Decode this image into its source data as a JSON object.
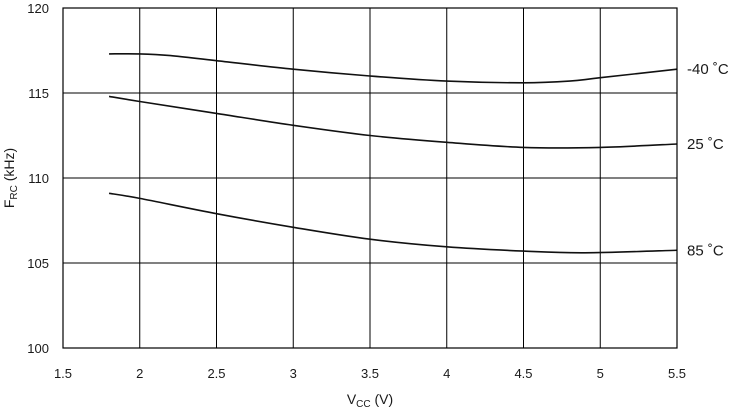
{
  "chart_data": {
    "type": "line",
    "title": "",
    "xlabel": {
      "main": "V",
      "sub": "CC",
      "unit": " (V)"
    },
    "ylabel": {
      "main": "F",
      "sub": "RC",
      "unit": " (kHz)"
    },
    "xlim": [
      1.5,
      5.5
    ],
    "ylim": [
      100,
      120
    ],
    "xticks": [
      1.5,
      2,
      2.5,
      3,
      3.5,
      4,
      4.5,
      5,
      5.5
    ],
    "xtick_labels": [
      "1.5",
      "2",
      "2.5",
      "3",
      "3.5",
      "4",
      "4.5",
      "5",
      "5.5"
    ],
    "yticks": [
      100,
      105,
      110,
      115,
      120
    ],
    "ytick_labels": [
      "100",
      "105",
      "110",
      "115",
      "120"
    ],
    "grid": true,
    "legend": "inline labels at right of each curve",
    "series": [
      {
        "name": "-40 ˚C",
        "x": [
          1.8,
          2.0,
          2.2,
          2.5,
          3.0,
          3.5,
          4.0,
          4.5,
          4.8,
          5.0,
          5.5
        ],
        "y": [
          117.3,
          117.3,
          117.2,
          116.9,
          116.4,
          116.0,
          115.7,
          115.6,
          115.7,
          115.9,
          116.4
        ]
      },
      {
        "name": "25 ˚C",
        "x": [
          1.8,
          2.0,
          2.5,
          3.0,
          3.5,
          4.0,
          4.5,
          5.0,
          5.5
        ],
        "y": [
          114.8,
          114.5,
          113.8,
          113.1,
          112.5,
          112.1,
          111.8,
          111.8,
          112.0
        ]
      },
      {
        "name": "85 ˚C",
        "x": [
          1.8,
          2.0,
          2.5,
          3.0,
          3.5,
          4.0,
          4.5,
          4.9,
          5.5
        ],
        "y": [
          109.1,
          108.8,
          107.9,
          107.1,
          106.4,
          105.95,
          105.7,
          105.6,
          105.75
        ]
      }
    ]
  }
}
